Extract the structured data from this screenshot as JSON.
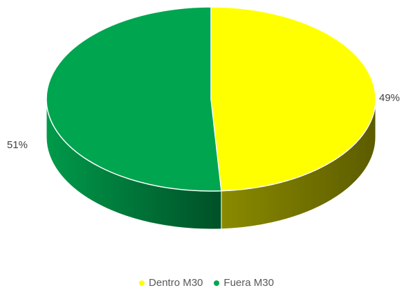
{
  "chart_data": {
    "type": "pie",
    "title": "",
    "slices": [
      {
        "label": "Dentro M30",
        "value": 49,
        "display": "49%",
        "color": "#ffff00",
        "side_color": "#7f7f00"
      },
      {
        "label": "Fuera M30",
        "value": 51,
        "display": "51%",
        "color": "#00a550",
        "side_color": "#005a2b"
      }
    ],
    "legend_position": "bottom",
    "style": "3d"
  }
}
